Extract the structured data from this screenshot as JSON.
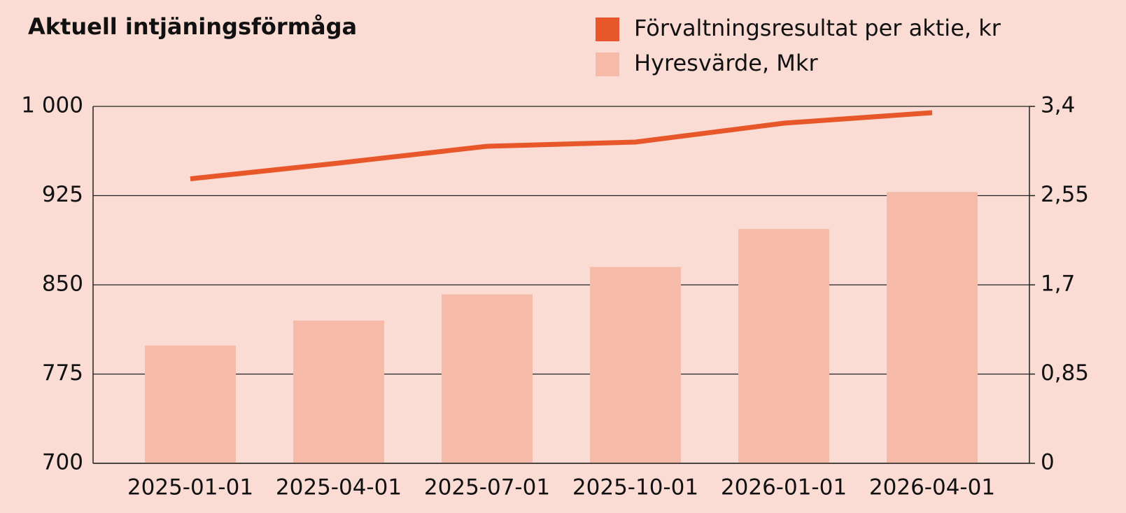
{
  "chart_data": {
    "type": "bar_line",
    "title": "Aktuell intjäningsförmåga",
    "categories": [
      "2025-01-01",
      "2025-04-01",
      "2025-07-01",
      "2025-10-01",
      "2026-01-01",
      "2026-04-01"
    ],
    "series": [
      {
        "name": "Förvaltningsresultat per aktie, kr",
        "color": "#e8572a",
        "type": "line",
        "axis": "y2",
        "values": [
          2.71,
          2.86,
          3.02,
          3.06,
          3.24,
          3.34
        ]
      },
      {
        "name": "Hyresvärde, Mkr",
        "color": "#f5bba8",
        "type": "bar",
        "values": [
          799,
          820,
          842,
          865,
          897,
          928
        ]
      }
    ],
    "ylim": [
      700,
      1000
    ],
    "yticks": [
      700,
      775,
      850,
      925,
      {
        "value": 1000,
        "label": "1 000"
      }
    ],
    "y2lim": [
      0,
      3.4
    ],
    "y2ticks": [
      0,
      {
        "value": 0.85,
        "label": "0,85"
      },
      {
        "value": 1.7,
        "label": "1,7"
      },
      {
        "value": 2.55,
        "label": "2,55"
      },
      {
        "value": 3.4,
        "label": "3,4"
      }
    ],
    "grid": true,
    "legend": "top-right"
  }
}
